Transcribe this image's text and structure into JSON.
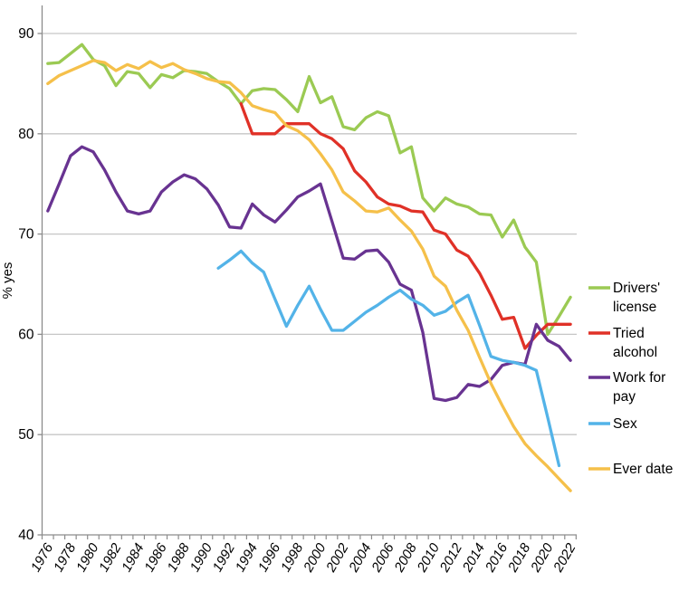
{
  "chart_data": {
    "type": "line",
    "title": "",
    "ylabel": "% yes",
    "ylim": [
      40,
      92
    ],
    "yticks": [
      40,
      50,
      60,
      70,
      80,
      90
    ],
    "x_start": 1976,
    "x_end": 2022,
    "xtick_label_step": 2,
    "grid": "horizontal",
    "legend_position": "right",
    "series": [
      {
        "name": "Drivers' license",
        "legend_lines": [
          "Drivers'",
          "license"
        ],
        "color": "#9BCA53",
        "first_year": 1976,
        "values": [
          87,
          87.1,
          88,
          88.9,
          87.4,
          86.8,
          84.8,
          86.2,
          86,
          84.6,
          85.9,
          85.6,
          86.3,
          86.2,
          86,
          85.2,
          84.5,
          83,
          84.3,
          84.5,
          84.4,
          83.4,
          82.2,
          85.7,
          83.1,
          83.7,
          80.7,
          80.4,
          81.6,
          82.2,
          81.8,
          78.1,
          78.7,
          73.6,
          72.3,
          73.6,
          73,
          72.7,
          72,
          71.9,
          69.7,
          71.4,
          68.7,
          67.2,
          60,
          61.8,
          63.7
        ]
      },
      {
        "name": "Tried alcohol",
        "legend_lines": [
          "Tried",
          "alcohol"
        ],
        "color": "#E03127",
        "first_year": 1993,
        "values": [
          83,
          80,
          80,
          80,
          81,
          81,
          81,
          80,
          79.5,
          78.5,
          76.3,
          75.2,
          73.7,
          73,
          72.8,
          72.3,
          72.2,
          70.4,
          70,
          68.4,
          67.8,
          66.1,
          63.9,
          61.5,
          61.7,
          58.6,
          59.9,
          61,
          61,
          61
        ]
      },
      {
        "name": "Work for pay",
        "legend_lines": [
          "Work for",
          "pay"
        ],
        "color": "#683391",
        "first_year": 1976,
        "values": [
          72.3,
          75,
          77.8,
          78.7,
          78.2,
          76.4,
          74.2,
          72.3,
          72,
          72.3,
          74.2,
          75.2,
          75.9,
          75.5,
          74.5,
          72.9,
          70.7,
          70.6,
          73,
          71.9,
          71.2,
          72.4,
          73.7,
          74.3,
          75,
          71.3,
          67.6,
          67.5,
          68.3,
          68.4,
          67.2,
          65,
          64.4,
          60.2,
          53.6,
          53.4,
          53.7,
          55,
          54.8,
          55.5,
          56.9,
          57.2,
          57,
          61,
          59.4,
          58.8,
          57.4
        ]
      },
      {
        "name": "Sex",
        "legend_lines": [
          "Sex"
        ],
        "color": "#53B3E8",
        "first_year": 1991,
        "values": [
          66.6,
          67.4,
          68.3,
          67.1,
          66.2,
          63.5,
          60.8,
          62.9,
          64.8,
          62.5,
          60.4,
          60.4,
          61.3,
          62.2,
          62.9,
          63.7,
          64.4,
          63.5,
          62.9,
          61.9,
          62.3,
          63.2,
          63.9,
          60.9,
          57.8,
          57.4,
          57.2,
          56.9,
          56.4,
          51.7,
          46.9
        ]
      },
      {
        "name": "Ever date",
        "legend_lines": [
          "Ever date"
        ],
        "color": "#F5C04A",
        "first_year": 1976,
        "values": [
          85,
          85.8,
          86.3,
          86.8,
          87.3,
          87.1,
          86.3,
          86.9,
          86.5,
          87.2,
          86.6,
          87,
          86.4,
          86,
          85.5,
          85.2,
          85.1,
          84.1,
          82.8,
          82.4,
          82.1,
          80.8,
          80.3,
          79.4,
          78,
          76.4,
          74.2,
          73.3,
          72.3,
          72.2,
          72.6,
          71.4,
          70.3,
          68.5,
          65.8,
          64.8,
          62.4,
          60.4,
          57.7,
          55.1,
          52.9,
          50.8,
          49.1,
          47.9,
          46.8,
          45.6,
          44.4
        ]
      }
    ]
  },
  "colors": {
    "gridline": "#C6C6C6",
    "axis": "#8C8C8C",
    "text": "#000000",
    "background": "#FFFFFF"
  }
}
